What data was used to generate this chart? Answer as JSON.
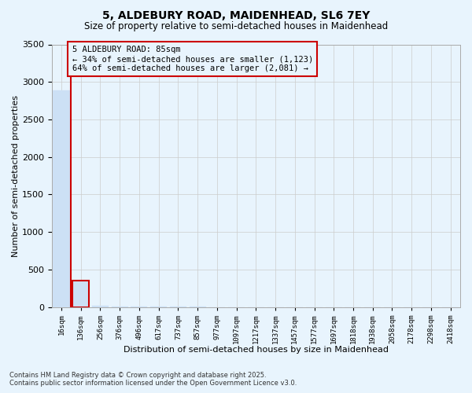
{
  "title_line1": "5, ALDEBURY ROAD, MAIDENHEAD, SL6 7EY",
  "title_line2": "Size of property relative to semi-detached houses in Maidenhead",
  "xlabel": "Distribution of semi-detached houses by size in Maidenhead",
  "ylabel": "Number of semi-detached properties",
  "annotation_title": "5 ALDEBURY ROAD: 85sqm",
  "annotation_line2": "← 34% of semi-detached houses are smaller (1,123)",
  "annotation_line3": "64% of semi-detached houses are larger (2,081) →",
  "footer_line1": "Contains HM Land Registry data © Crown copyright and database right 2025.",
  "footer_line2": "Contains public sector information licensed under the Open Government Licence v3.0.",
  "bar_color": "#cce0f5",
  "highlight_bar_edge_color": "#cc0000",
  "vline_color": "#cc0000",
  "annotation_box_edge_color": "#cc0000",
  "grid_color": "#cccccc",
  "background_color": "#e8f4fd",
  "categories": [
    "16sqm",
    "136sqm",
    "256sqm",
    "376sqm",
    "496sqm",
    "617sqm",
    "737sqm",
    "857sqm",
    "977sqm",
    "1097sqm",
    "1217sqm",
    "1337sqm",
    "1457sqm",
    "1577sqm",
    "1697sqm",
    "1818sqm",
    "1938sqm",
    "2058sqm",
    "2178sqm",
    "2298sqm",
    "2418sqm"
  ],
  "values": [
    2885,
    355,
    16,
    6,
    3,
    2,
    1,
    1,
    0,
    0,
    0,
    0,
    0,
    0,
    0,
    0,
    0,
    0,
    0,
    0,
    0
  ],
  "highlight_index": 1,
  "ylim": [
    0,
    3500
  ],
  "yticks": [
    0,
    500,
    1000,
    1500,
    2000,
    2500,
    3000,
    3500
  ]
}
